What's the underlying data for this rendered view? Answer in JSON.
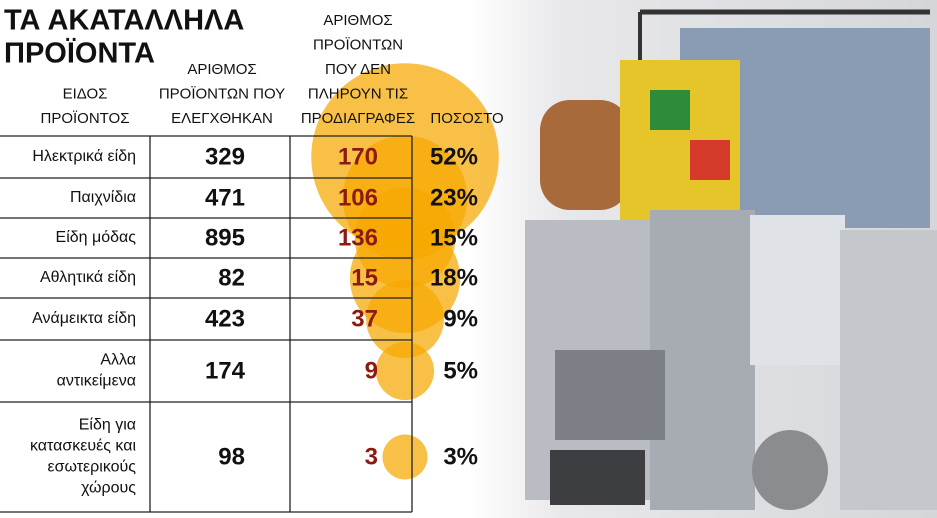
{
  "header": {
    "title": [
      "ΤΑ ΑΚΑΤΑΛΛΗΛΑ",
      "ΠΡΟΪΟΝΤΑ"
    ]
  },
  "table": {
    "columns": [
      [
        "ΕΙΔΟΣ",
        "ΠΡΟΪΟΝΤΟΣ"
      ],
      [
        "ΑΡΙΘΜΟΣ",
        "ΠΡΟΪΟΝΤΩΝ ΠΟΥ",
        "ΕΛΕΓΧΘΗΚΑΝ"
      ],
      [
        "ΑΡΙΘΜΟΣ",
        "ΠΡΟΪΟΝΤΩΝ",
        "ΠΟΥ ΔΕΝ",
        "ΠΛΗΡΟΥΝ ΤΙΣ",
        "ΠΡΟΔΙΑΓΡΑΦΕΣ"
      ],
      [
        "ΠΟΣΟΣΤΟ"
      ]
    ],
    "rows": [
      {
        "product": [
          "Ηλεκτρικά είδη"
        ],
        "checked": 329,
        "failed": 170,
        "share": 52,
        "share_label": "52%"
      },
      {
        "product": [
          "Παιχνίδια"
        ],
        "checked": 471,
        "failed": 106,
        "share": 23,
        "share_label": "23%"
      },
      {
        "product": [
          "Είδη μόδας"
        ],
        "checked": 895,
        "failed": 136,
        "share": 15,
        "share_label": "15%"
      },
      {
        "product": [
          "Αθλητικά είδη"
        ],
        "checked": 82,
        "failed": 15,
        "share": 18,
        "share_label": "18%"
      },
      {
        "product": [
          "Ανάμεικτα είδη"
        ],
        "checked": 423,
        "failed": 37,
        "share": 9,
        "share_label": "9%"
      },
      {
        "product": [
          "Αλλα",
          "αντικείμενα"
        ],
        "checked": 174,
        "failed": 9,
        "share": 5,
        "share_label": "5%"
      },
      {
        "product": [
          "Είδη για",
          "κατασκευές και",
          "εσωτερικούς",
          "χώρους"
        ],
        "checked": 98,
        "failed": 3,
        "share": 3,
        "share_label": "3%"
      }
    ]
  }
}
